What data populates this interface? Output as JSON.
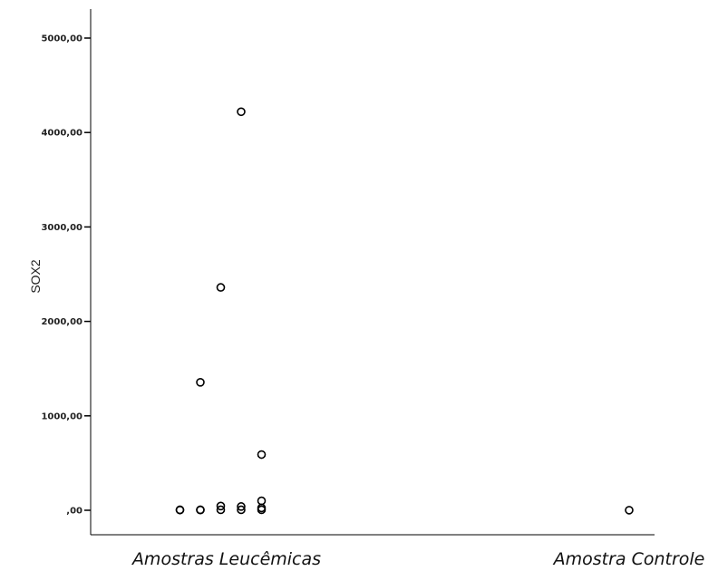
{
  "chart_data": {
    "type": "scatter",
    "ylabel": "SOX2",
    "categories": [
      "Amostras Leucêmicas",
      "Amostra Controle"
    ],
    "yticks": [
      {
        "value": 0,
        "label": ",00"
      },
      {
        "value": 1000,
        "label": "1000,00"
      },
      {
        "value": 2000,
        "label": "2000,00"
      },
      {
        "value": 3000,
        "label": "3000,00"
      },
      {
        "value": 4000,
        "label": "4000,00"
      },
      {
        "value": 5000,
        "label": "5000,00"
      }
    ],
    "ylim": [
      -250,
      5300
    ],
    "points": [
      {
        "category": "Amostras Leucêmicas",
        "jitter": 0,
        "y": 4220
      },
      {
        "category": "Amostras Leucêmicas",
        "jitter": -1,
        "y": 2360
      },
      {
        "category": "Amostras Leucêmicas",
        "jitter": -2,
        "y": 1355
      },
      {
        "category": "Amostras Leucêmicas",
        "jitter": 1,
        "y": 590
      },
      {
        "category": "Amostras Leucêmicas",
        "jitter": 1,
        "y": 100
      },
      {
        "category": "Amostras Leucêmicas",
        "jitter": 1,
        "y": 25
      },
      {
        "category": "Amostras Leucêmicas",
        "jitter": 1,
        "y": 5
      },
      {
        "category": "Amostras Leucêmicas",
        "jitter": 0,
        "y": 40
      },
      {
        "category": "Amostras Leucêmicas",
        "jitter": 0,
        "y": 5
      },
      {
        "category": "Amostras Leucêmicas",
        "jitter": -1,
        "y": 45
      },
      {
        "category": "Amostras Leucêmicas",
        "jitter": -1,
        "y": 5
      },
      {
        "category": "Amostras Leucêmicas",
        "jitter": -2,
        "y": 5
      },
      {
        "category": "Amostras Leucêmicas",
        "jitter": -2,
        "y": 3
      },
      {
        "category": "Amostras Leucêmicas",
        "jitter": -3,
        "y": 5
      },
      {
        "category": "Amostras Leucêmicas",
        "jitter": -3,
        "y": 2
      },
      {
        "category": "Amostra Controle",
        "jitter": 0,
        "y": 1
      }
    ]
  }
}
